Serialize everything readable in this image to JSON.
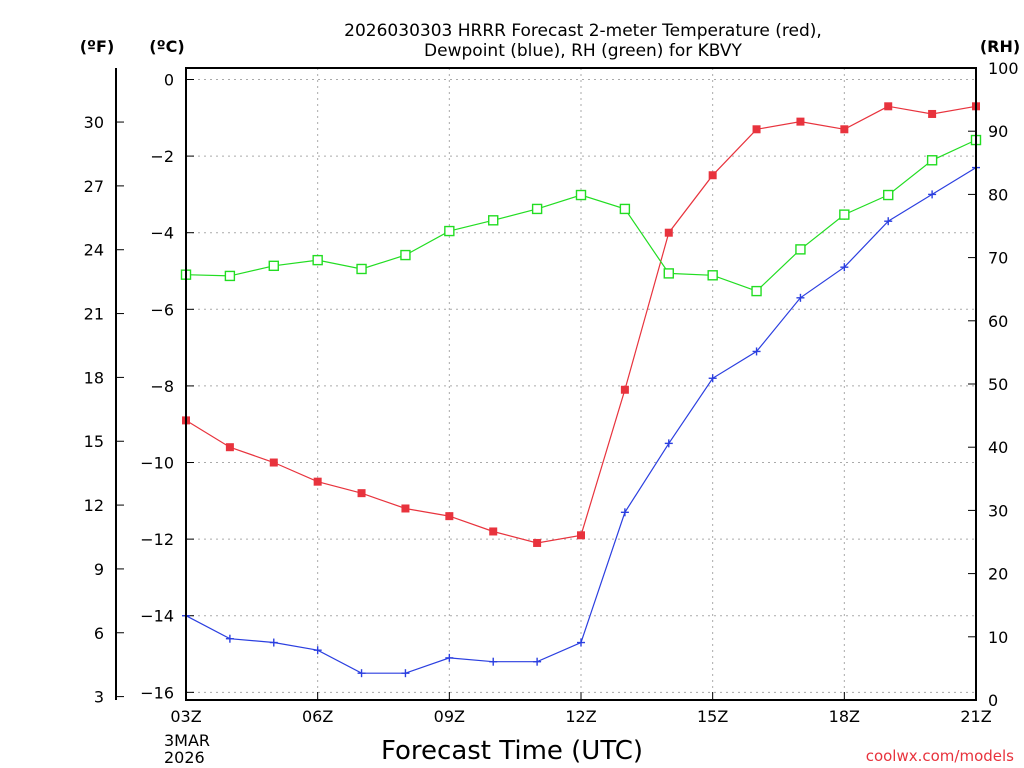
{
  "chart_data": {
    "type": "line",
    "title_line1": "2026030303 HRRR Forecast 2-meter Temperature (red),",
    "title_line2": "Dewpoint (blue), RH (green) for KBVY",
    "xlabel": "Forecast Time (UTC)",
    "credit": "coolwx.com/models",
    "date_label_month": "3MAR",
    "date_label_year": "2026",
    "x_hours": [
      3,
      4,
      5,
      6,
      7,
      8,
      9,
      10,
      11,
      12,
      13,
      14,
      15,
      16,
      17,
      18,
      19,
      20,
      21
    ],
    "x_ticks": [
      {
        "hour": 3,
        "label": "03Z"
      },
      {
        "hour": 6,
        "label": "06Z"
      },
      {
        "hour": 9,
        "label": "09Z"
      },
      {
        "hour": 12,
        "label": "12Z"
      },
      {
        "hour": 15,
        "label": "15Z"
      },
      {
        "hour": 18,
        "label": "18Z"
      },
      {
        "hour": 21,
        "label": "21Z"
      }
    ],
    "xlim": [
      3,
      21
    ],
    "celsius_axis": {
      "unit_label": "(ºC)",
      "ylim": [
        -16.2,
        0.3
      ],
      "ticks": [
        0,
        -2,
        -4,
        -6,
        -8,
        -10,
        -12,
        -14,
        -16
      ],
      "tick_labels": [
        "0",
        "−2",
        "−4",
        "−6",
        "−8",
        "−10",
        "−12",
        "−14",
        "−16"
      ]
    },
    "fahrenheit_axis": {
      "unit_label": "(ºF)",
      "ticks": [
        30,
        27,
        24,
        21,
        18,
        15,
        12,
        9,
        6,
        3
      ]
    },
    "rh_axis": {
      "unit_label": "(RH)",
      "ylim": [
        0,
        100
      ],
      "ticks": [
        100,
        90,
        80,
        70,
        60,
        50,
        40,
        30,
        20,
        10,
        0
      ]
    },
    "series": [
      {
        "name": "2-meter Temperature",
        "color": "#e8333d",
        "marker": "filled-square",
        "axis": "celsius",
        "values": [
          -8.9,
          -9.6,
          -10.0,
          -10.5,
          -10.8,
          -11.2,
          -11.4,
          -11.8,
          -12.1,
          -11.9,
          -8.1,
          -4.0,
          -2.5,
          -1.3,
          -1.1,
          -1.3,
          -0.7,
          -0.9,
          -0.7
        ]
      },
      {
        "name": "Dewpoint",
        "color": "#2b3fe0",
        "marker": "plus",
        "axis": "celsius",
        "values": [
          -14.0,
          -14.6,
          -14.7,
          -14.9,
          -15.5,
          -15.5,
          -15.1,
          -15.2,
          -15.2,
          -14.7,
          -11.3,
          -9.5,
          -7.8,
          -7.1,
          -5.7,
          -4.9,
          -3.7,
          -3.0,
          -2.3
        ]
      },
      {
        "name": "RH",
        "color": "#22dd22",
        "marker": "open-square",
        "axis": "rh",
        "values": [
          67.3,
          67.1,
          68.7,
          69.6,
          68.2,
          70.4,
          74.2,
          75.9,
          77.7,
          79.9,
          77.7,
          67.5,
          67.2,
          64.7,
          71.3,
          76.8,
          79.9,
          85.4,
          88.6
        ]
      }
    ]
  }
}
